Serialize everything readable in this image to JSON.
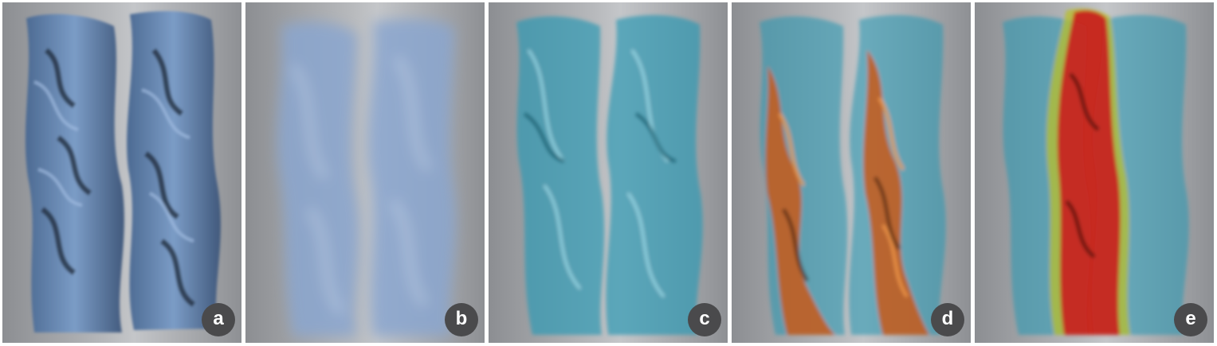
{
  "panels": [
    {
      "label": "a",
      "style": "shaded-surface",
      "color": "#6f8fb8"
    },
    {
      "label": "b",
      "style": "diffuse-smoke",
      "color": "#8aa6cf"
    },
    {
      "label": "c",
      "style": "translucent-cyan",
      "color": "#3aa7c0"
    },
    {
      "label": "d",
      "style": "cyan-with-orange",
      "color": "#d4641e"
    },
    {
      "label": "e",
      "style": "cyan-with-red-core",
      "color": "#c81e1e"
    }
  ]
}
